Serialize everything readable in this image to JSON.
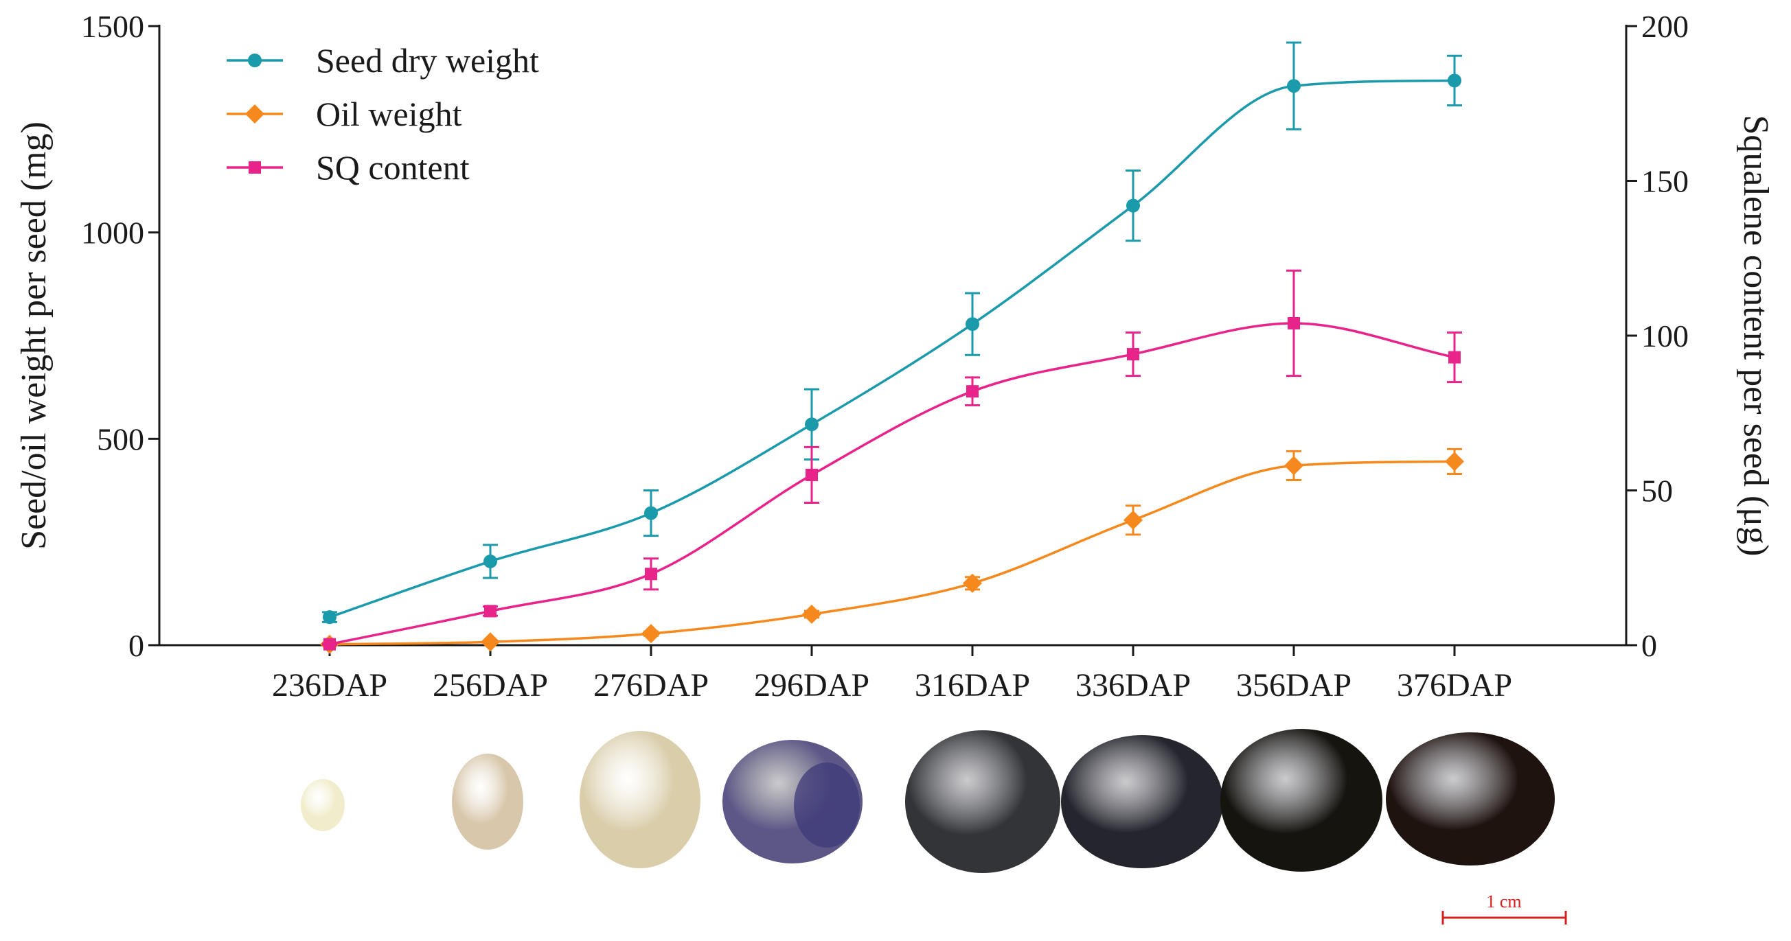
{
  "chart_data": {
    "type": "line",
    "title": "",
    "categories": [
      "236DAP",
      "256DAP",
      "276DAP",
      "296DAP",
      "316DAP",
      "336DAP",
      "356DAP",
      "376DAP"
    ],
    "ylabel": "Seed/oil weight per seed (mg)",
    "ylabel_right": "Squalene content per seed (μg)",
    "ylim": [
      0,
      1500
    ],
    "y_ticks": [
      0,
      500,
      1000,
      1500
    ],
    "ylim_right": [
      0,
      200
    ],
    "y_ticks_right": [
      0,
      50,
      100,
      150,
      200
    ],
    "grid": false,
    "legend_position": "top-left",
    "series": [
      {
        "name": "Seed dry weight",
        "axis": "left",
        "marker": "circle",
        "color": "#1a9aaa",
        "values": [
          68,
          203,
          320,
          535,
          778,
          1065,
          1355,
          1368
        ],
        "errors": [
          12,
          40,
          55,
          85,
          75,
          85,
          105,
          60
        ]
      },
      {
        "name": "Oil weight",
        "axis": "left",
        "marker": "diamond",
        "color": "#f5891e",
        "values": [
          2,
          8,
          28,
          75,
          150,
          303,
          435,
          445
        ],
        "errors": [
          1,
          3,
          5,
          8,
          15,
          35,
          35,
          30
        ]
      },
      {
        "name": "SQ content",
        "axis": "right",
        "marker": "square",
        "color": "#e8238a",
        "values": [
          0.3,
          11,
          23,
          55,
          82,
          94,
          104,
          93
        ],
        "errors": [
          0.2,
          1.5,
          5,
          9,
          4.5,
          7,
          17,
          8
        ]
      }
    ],
    "scale_bar_label": "1 cm",
    "seed_colors": [
      "#f1edcc",
      "#d8c7ab",
      "#d9cdaa",
      "#5d5788",
      "#323438",
      "#25252e",
      "#16140f",
      "#1f130f"
    ]
  }
}
